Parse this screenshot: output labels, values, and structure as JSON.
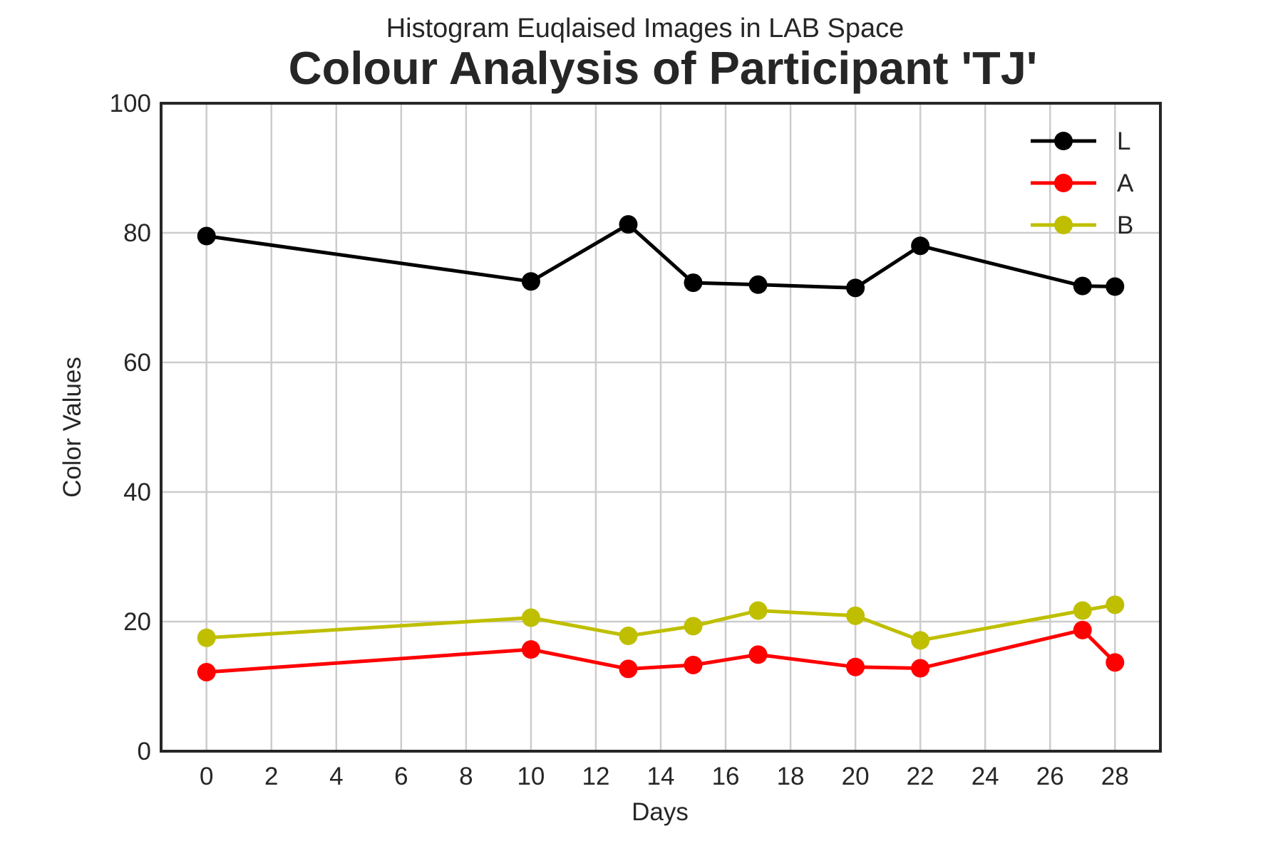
{
  "chart_data": {
    "type": "line",
    "subtitle": "Histogram Euqlaised Images in LAB Space",
    "title": "Colour Analysis of Participant 'TJ'",
    "xlabel": "Days",
    "ylabel": "Color Values",
    "xlim": [
      -1.4,
      29.4
    ],
    "ylim": [
      0,
      100
    ],
    "xticks": [
      0,
      2,
      4,
      6,
      8,
      10,
      12,
      14,
      16,
      18,
      20,
      22,
      24,
      26,
      28
    ],
    "yticks": [
      0,
      20,
      40,
      60,
      80,
      100
    ],
    "grid": true,
    "legend_position": "top-right",
    "x": [
      0,
      10,
      13,
      15,
      17,
      20,
      22,
      27,
      28
    ],
    "series": [
      {
        "name": "L",
        "color": "#000000",
        "values": [
          79.5,
          72.5,
          81.3,
          72.3,
          72.0,
          71.5,
          78.0,
          71.8,
          71.7
        ]
      },
      {
        "name": "A",
        "color": "#ff0000",
        "values": [
          12.2,
          15.7,
          12.7,
          13.3,
          14.9,
          13.0,
          12.8,
          18.7,
          13.7
        ]
      },
      {
        "name": "B",
        "color": "#bfbf00",
        "values": [
          17.5,
          20.6,
          17.8,
          19.3,
          21.7,
          20.9,
          17.1,
          21.7,
          22.6
        ]
      }
    ]
  }
}
